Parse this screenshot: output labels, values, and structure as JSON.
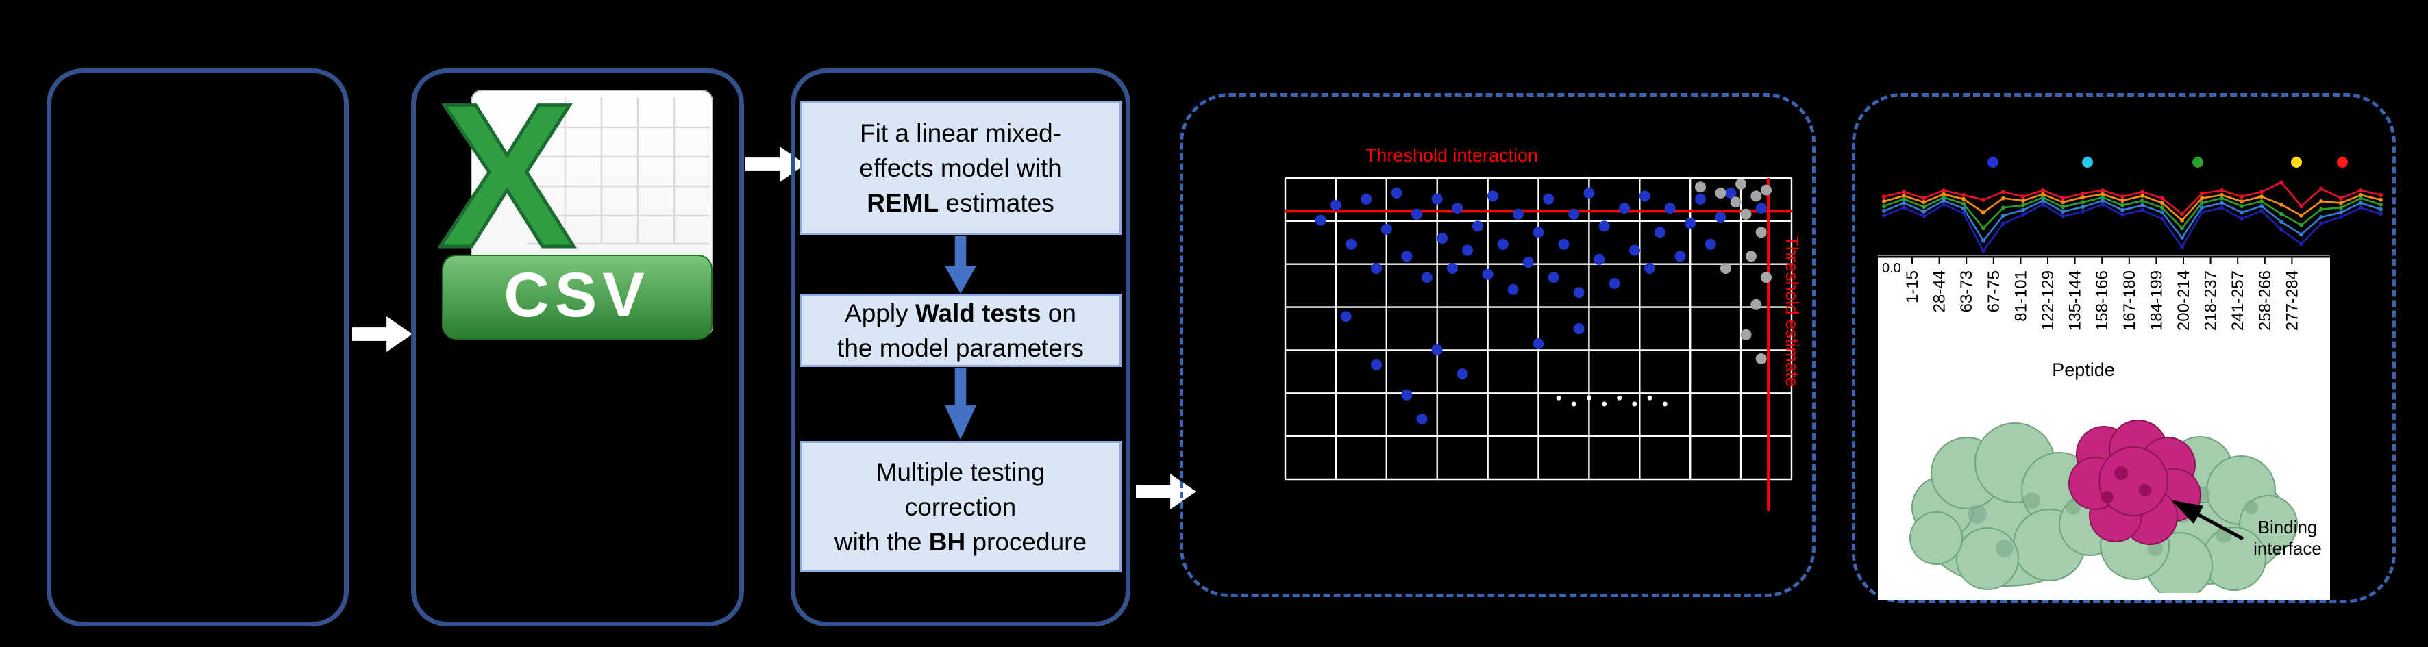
{
  "palette": {
    "background": "#000000",
    "solid_box_border": "#34518c",
    "dashed_box_border": "#3a62b0",
    "step_fill": "#dae6f5",
    "step_border": "#8faadc",
    "flow_arrow": "#ffffff",
    "step_arrow": "#4472c4",
    "threshold_red": "#ff0000",
    "csv_green": "#2f9e41"
  },
  "csv": {
    "x_letter": "X",
    "label": "CSV"
  },
  "steps": {
    "s1": {
      "l1": "Fit a linear mixed-",
      "l2": "effects model with",
      "l3_bold": "REML",
      "l3_rest": " estimates"
    },
    "s2": {
      "l1_pre": "Apply ",
      "l1_bold": "Wald tests",
      "l1_post": " on",
      "l2": "the model parameters"
    },
    "s3": {
      "l1": "Multiple testing",
      "l2": "correction",
      "l3_pre": "with the ",
      "l3_bold": "BH",
      "l3_post": " procedure"
    }
  },
  "protein": {
    "caption_line1": "Binding",
    "caption_line2": "interface"
  },
  "chart_data": [
    {
      "type": "scatter",
      "name": "threshold-scatter-plot",
      "annotations": {
        "top": "Threshold interaction",
        "right": "Threshold estimate"
      },
      "grid": {
        "cols": 10,
        "rows": 7,
        "color": "#ffffff"
      },
      "threshold_h_frac": 0.11,
      "threshold_v_frac": 0.954,
      "threshold_color": "#ff0000",
      "series": [
        {
          "name": "significant-interactions",
          "color": "#2036c9",
          "r": 8,
          "points": [
            [
              0.07,
              0.14
            ],
            [
              0.1,
              0.09
            ],
            [
              0.13,
              0.22
            ],
            [
              0.16,
              0.07
            ],
            [
              0.18,
              0.3
            ],
            [
              0.2,
              0.17
            ],
            [
              0.22,
              0.05
            ],
            [
              0.24,
              0.26
            ],
            [
              0.26,
              0.12
            ],
            [
              0.28,
              0.33
            ],
            [
              0.3,
              0.07
            ],
            [
              0.31,
              0.2
            ],
            [
              0.33,
              0.3
            ],
            [
              0.34,
              0.1
            ],
            [
              0.36,
              0.24
            ],
            [
              0.38,
              0.16
            ],
            [
              0.4,
              0.32
            ],
            [
              0.41,
              0.06
            ],
            [
              0.43,
              0.22
            ],
            [
              0.45,
              0.37
            ],
            [
              0.46,
              0.12
            ],
            [
              0.48,
              0.28
            ],
            [
              0.5,
              0.18
            ],
            [
              0.52,
              0.07
            ],
            [
              0.53,
              0.33
            ],
            [
              0.55,
              0.22
            ],
            [
              0.57,
              0.12
            ],
            [
              0.58,
              0.38
            ],
            [
              0.6,
              0.05
            ],
            [
              0.62,
              0.27
            ],
            [
              0.63,
              0.16
            ],
            [
              0.65,
              0.35
            ],
            [
              0.67,
              0.1
            ],
            [
              0.69,
              0.24
            ],
            [
              0.71,
              0.06
            ],
            [
              0.72,
              0.3
            ],
            [
              0.74,
              0.18
            ],
            [
              0.76,
              0.1
            ],
            [
              0.78,
              0.26
            ],
            [
              0.8,
              0.15
            ],
            [
              0.82,
              0.07
            ],
            [
              0.84,
              0.22
            ],
            [
              0.86,
              0.13
            ],
            [
              0.88,
              0.05
            ],
            [
              0.94,
              0.1
            ],
            [
              0.12,
              0.46
            ],
            [
              0.18,
              0.62
            ],
            [
              0.24,
              0.72
            ],
            [
              0.27,
              0.8
            ],
            [
              0.3,
              0.57
            ],
            [
              0.35,
              0.65
            ],
            [
              0.5,
              0.55
            ],
            [
              0.58,
              0.5
            ]
          ]
        },
        {
          "name": "reference-peptides",
          "color": "#a6a6a6",
          "r": 8,
          "points": [
            [
              0.82,
              0.03
            ],
            [
              0.86,
              0.05
            ],
            [
              0.9,
              0.02
            ],
            [
              0.93,
              0.06
            ],
            [
              0.95,
              0.04
            ],
            [
              0.91,
              0.12
            ],
            [
              0.94,
              0.18
            ],
            [
              0.92,
              0.26
            ],
            [
              0.95,
              0.33
            ],
            [
              0.93,
              0.42
            ],
            [
              0.91,
              0.52
            ],
            [
              0.94,
              0.6
            ],
            [
              0.89,
              0.08
            ],
            [
              0.87,
              0.3
            ]
          ]
        },
        {
          "name": "minor-points",
          "color": "#ffffff",
          "r": 3.5,
          "points": [
            [
              0.54,
              0.73
            ],
            [
              0.57,
              0.75
            ],
            [
              0.6,
              0.73
            ],
            [
              0.63,
              0.75
            ],
            [
              0.66,
              0.73
            ],
            [
              0.69,
              0.75
            ],
            [
              0.72,
              0.73
            ],
            [
              0.75,
              0.75
            ]
          ]
        }
      ]
    },
    {
      "type": "line",
      "name": "peptide-intensity-profiles",
      "legend_dots": [
        {
          "color": "#2433d6",
          "x_frac": 0.222
        },
        {
          "color": "#27c8f0",
          "x_frac": 0.41
        },
        {
          "color": "#2ca02c",
          "x_frac": 0.63
        },
        {
          "color": "#ffd919",
          "x_frac": 0.826
        },
        {
          "color": "#ff1a1a",
          "x_frac": 0.917
        }
      ],
      "series": [
        {
          "name": "red",
          "color": "#e8112d",
          "values": [
            0.28,
            0.22,
            0.3,
            0.2,
            0.26,
            0.32,
            0.22,
            0.28,
            0.2,
            0.3,
            0.24,
            0.2,
            0.28,
            0.22,
            0.3,
            0.5,
            0.24,
            0.2,
            0.28,
            0.22,
            0.1,
            0.4,
            0.18,
            0.3,
            0.2,
            0.26
          ]
        },
        {
          "name": "orange",
          "color": "#ff8c00",
          "values": [
            0.34,
            0.27,
            0.35,
            0.25,
            0.31,
            0.48,
            0.3,
            0.33,
            0.25,
            0.35,
            0.29,
            0.25,
            0.33,
            0.27,
            0.36,
            0.58,
            0.3,
            0.26,
            0.34,
            0.28,
            0.38,
            0.52,
            0.34,
            0.36,
            0.26,
            0.32
          ]
        },
        {
          "name": "green",
          "color": "#2ca02c",
          "values": [
            0.4,
            0.31,
            0.41,
            0.29,
            0.37,
            0.68,
            0.42,
            0.39,
            0.29,
            0.41,
            0.35,
            0.29,
            0.39,
            0.33,
            0.42,
            0.68,
            0.36,
            0.3,
            0.4,
            0.34,
            0.5,
            0.64,
            0.44,
            0.42,
            0.3,
            0.38
          ]
        },
        {
          "name": "blue",
          "color": "#2f7ed8",
          "values": [
            0.46,
            0.36,
            0.47,
            0.33,
            0.43,
            0.84,
            0.52,
            0.45,
            0.33,
            0.47,
            0.41,
            0.33,
            0.45,
            0.39,
            0.48,
            0.8,
            0.42,
            0.36,
            0.48,
            0.4,
            0.6,
            0.76,
            0.54,
            0.48,
            0.36,
            0.44
          ]
        },
        {
          "name": "navy",
          "color": "#1f1fb4",
          "values": [
            0.52,
            0.42,
            0.53,
            0.38,
            0.49,
            0.97,
            0.62,
            0.51,
            0.38,
            0.53,
            0.47,
            0.38,
            0.51,
            0.45,
            0.56,
            0.92,
            0.48,
            0.42,
            0.56,
            0.46,
            0.7,
            0.88,
            0.62,
            0.54,
            0.42,
            0.5
          ]
        }
      ]
    },
    {
      "type": "axis",
      "name": "peptide-axis",
      "y_tick": "0.0",
      "xlabel": "Peptide",
      "ticks": [
        "1-15",
        "28-44",
        "63-73",
        "67-75",
        "81-101",
        "122-129",
        "135-144",
        "158-166",
        "167-180",
        "184-199",
        "200-214",
        "218-237",
        "241-257",
        "258-266",
        "277-284"
      ]
    }
  ]
}
